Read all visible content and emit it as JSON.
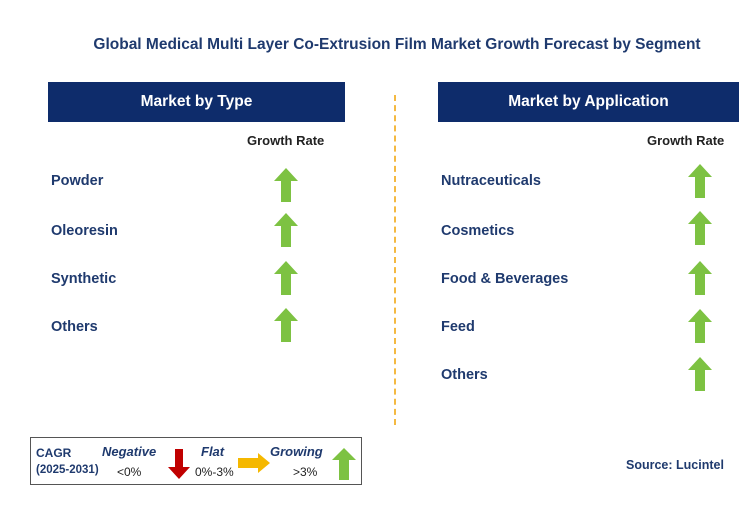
{
  "title": "Global Medical Multi Layer Co-Extrusion Film Market Growth Forecast by Segment",
  "left_panel": {
    "header": "Market by Type",
    "growth_label": "Growth Rate",
    "rows": [
      {
        "label": "Powder",
        "trend": "growing"
      },
      {
        "label": "Oleoresin",
        "trend": "growing"
      },
      {
        "label": "Synthetic",
        "trend": "growing"
      },
      {
        "label": "Others",
        "trend": "growing"
      }
    ]
  },
  "right_panel": {
    "header": "Market by Application",
    "growth_label": "Growth Rate",
    "rows": [
      {
        "label": "Nutraceuticals",
        "trend": "growing"
      },
      {
        "label": "Cosmetics",
        "trend": "growing"
      },
      {
        "label": "Food & Beverages",
        "trend": "growing"
      },
      {
        "label": "Feed",
        "trend": "growing"
      },
      {
        "label": "Others",
        "trend": "growing"
      }
    ]
  },
  "legend": {
    "cagr": "CAGR",
    "period": "(2025-2031)",
    "negative": "Negative",
    "negative_range": "<0%",
    "flat": "Flat",
    "flat_range": "0%-3%",
    "growing": "Growing",
    "growing_range": ">3%"
  },
  "source": "Source: Lucintel",
  "colors": {
    "header_bg": "#0e2c6b",
    "arrow_up": "#7dc242",
    "arrow_down": "#c00000",
    "arrow_flat": "#f5b800",
    "divider": "#f4b942"
  }
}
